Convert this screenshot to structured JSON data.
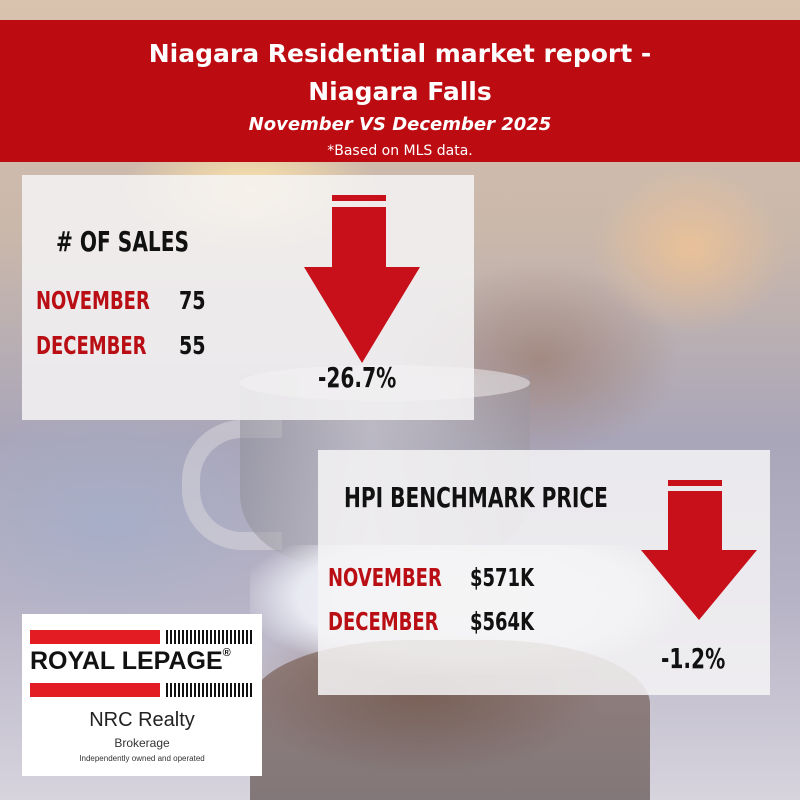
{
  "header": {
    "title_line1": "Niagara Residential market report -",
    "title_line2": "Niagara Falls",
    "subtitle": "November VS December 2025",
    "note": "*Based on MLS data."
  },
  "sales": {
    "heading": "# OF SALES",
    "rows": [
      {
        "label": "NOVEMBER",
        "value": "75"
      },
      {
        "label": "DECEMBER",
        "value": "55"
      }
    ],
    "change": "-26.7%",
    "trend_icon": "down-arrow-icon"
  },
  "hpi": {
    "heading": "HPI BENCHMARK PRICE",
    "rows": [
      {
        "label": "NOVEMBER",
        "value": "$571K"
      },
      {
        "label": "DECEMBER",
        "value": "$564K"
      }
    ],
    "change": "-1.2%",
    "trend_icon": "down-arrow-icon"
  },
  "logo": {
    "brand": "ROYAL LEPAGE",
    "company": "NRC Realty",
    "type": "Brokerage",
    "tagline": "Independently owned and operated"
  },
  "colors": {
    "brand_red": "#bd0b12",
    "arrow_red": "#c8101a",
    "label_red": "#b90f14"
  }
}
